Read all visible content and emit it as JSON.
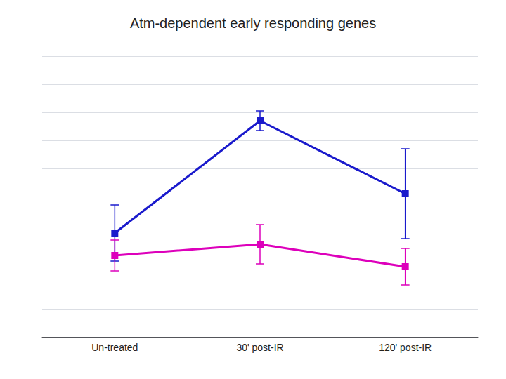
{
  "chart_data": {
    "type": "line",
    "title": "Atm-dependent early responding genes",
    "categories": [
      "Un-treated",
      "30' post-IR",
      "120' post-IR"
    ],
    "series": [
      {
        "color": "#1a1acc",
        "values": [
          0.42,
          0.82,
          0.56
        ],
        "yerr": [
          0.1,
          0.035,
          0.16
        ],
        "marker": "square"
      },
      {
        "color": "#dd00bb",
        "values": [
          0.34,
          0.38,
          0.3
        ],
        "yerr": [
          0.055,
          0.07,
          0.065
        ],
        "marker": "square"
      }
    ],
    "ylim": [
      0.05,
      1.05
    ],
    "yticks": [
      0.05,
      0.15,
      0.25,
      0.35,
      0.45,
      0.55,
      0.65,
      0.75,
      0.85,
      0.95,
      1.05
    ],
    "grid": true,
    "tick_labels": "x"
  }
}
